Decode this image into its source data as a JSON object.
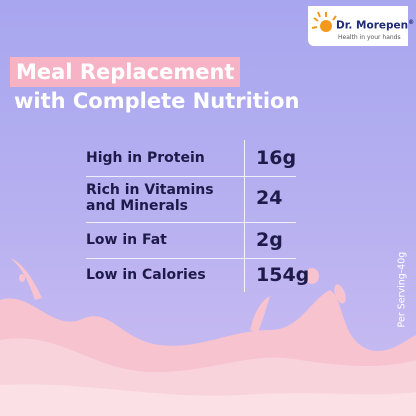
{
  "logo": {
    "brand": "Dr. Morepen",
    "registered": "®",
    "tagline": "Health in your hands"
  },
  "headline": {
    "highlight": "Meal Replacement",
    "line2": "with Complete Nutrition"
  },
  "table": {
    "rows": [
      {
        "label": [
          "High in Protein"
        ],
        "value": "16g"
      },
      {
        "label": [
          "Rich in Vitamins",
          "and Minerals"
        ],
        "value": "24"
      },
      {
        "label": [
          "Low in Fat"
        ],
        "value": "2g"
      },
      {
        "label": [
          "Low in Calories"
        ],
        "value": "154g"
      }
    ]
  },
  "note": "Per Serving-40g"
}
